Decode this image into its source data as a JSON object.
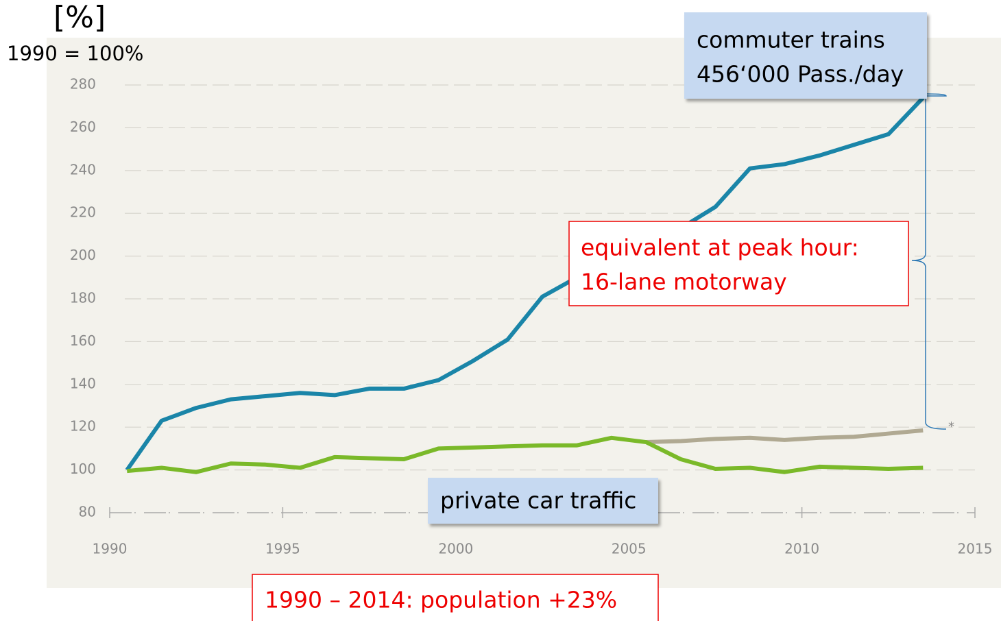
{
  "chart_data": {
    "type": "line",
    "unit_label": "[%]",
    "base_note": "1990 = 100%",
    "annotations": {
      "trains_1": "commuter trains",
      "trains_2": "456‘000 Pass./day",
      "peak_1": "equivalent at peak hour:",
      "peak_2": "16-lane motorway",
      "cars": "private car traffic",
      "population": "1990 – 2014: population +23%",
      "asterisk": "*"
    },
    "x": [
      1990.5,
      1991.5,
      1992.5,
      1993.5,
      1994.5,
      1995.5,
      1996.5,
      1997.5,
      1998.5,
      1999.5,
      2000.5,
      2001.5,
      2002.5,
      2003.5,
      2004.5,
      2005.5,
      2006.5,
      2007.5,
      2008.5,
      2009.5,
      2010.5,
      2011.5,
      2012.5,
      2013.5
    ],
    "series": [
      {
        "color": "#1a85a8",
        "values": [
          100,
          123,
          129,
          133,
          134.5,
          136,
          135,
          138,
          138,
          142,
          151,
          161,
          181,
          190,
          198,
          205,
          213,
          223,
          241,
          243,
          247,
          252,
          257,
          274
        ]
      },
      {
        "color": "#b0a992",
        "values": [
          null,
          null,
          null,
          null,
          null,
          null,
          null,
          null,
          null,
          null,
          null,
          null,
          null,
          null,
          null,
          113,
          113.5,
          114.5,
          115,
          114,
          115,
          115.5,
          117,
          118.5
        ]
      },
      {
        "color": "#7ab929",
        "values": [
          99.5,
          101,
          99,
          103,
          102.5,
          101,
          106,
          105.5,
          105,
          110,
          110.5,
          111,
          111.5,
          111.5,
          115,
          113,
          105,
          100.5,
          101,
          99,
          101.5,
          101,
          100.5,
          101
        ]
      }
    ],
    "xlim": [
      1990,
      2015
    ],
    "xticks": [
      1990,
      1995,
      2000,
      2005,
      2010,
      2015
    ],
    "ylim": [
      80,
      280
    ],
    "yticks": [
      80,
      100,
      120,
      140,
      160,
      180,
      200,
      220,
      240,
      260,
      280
    ],
    "grid": true
  }
}
